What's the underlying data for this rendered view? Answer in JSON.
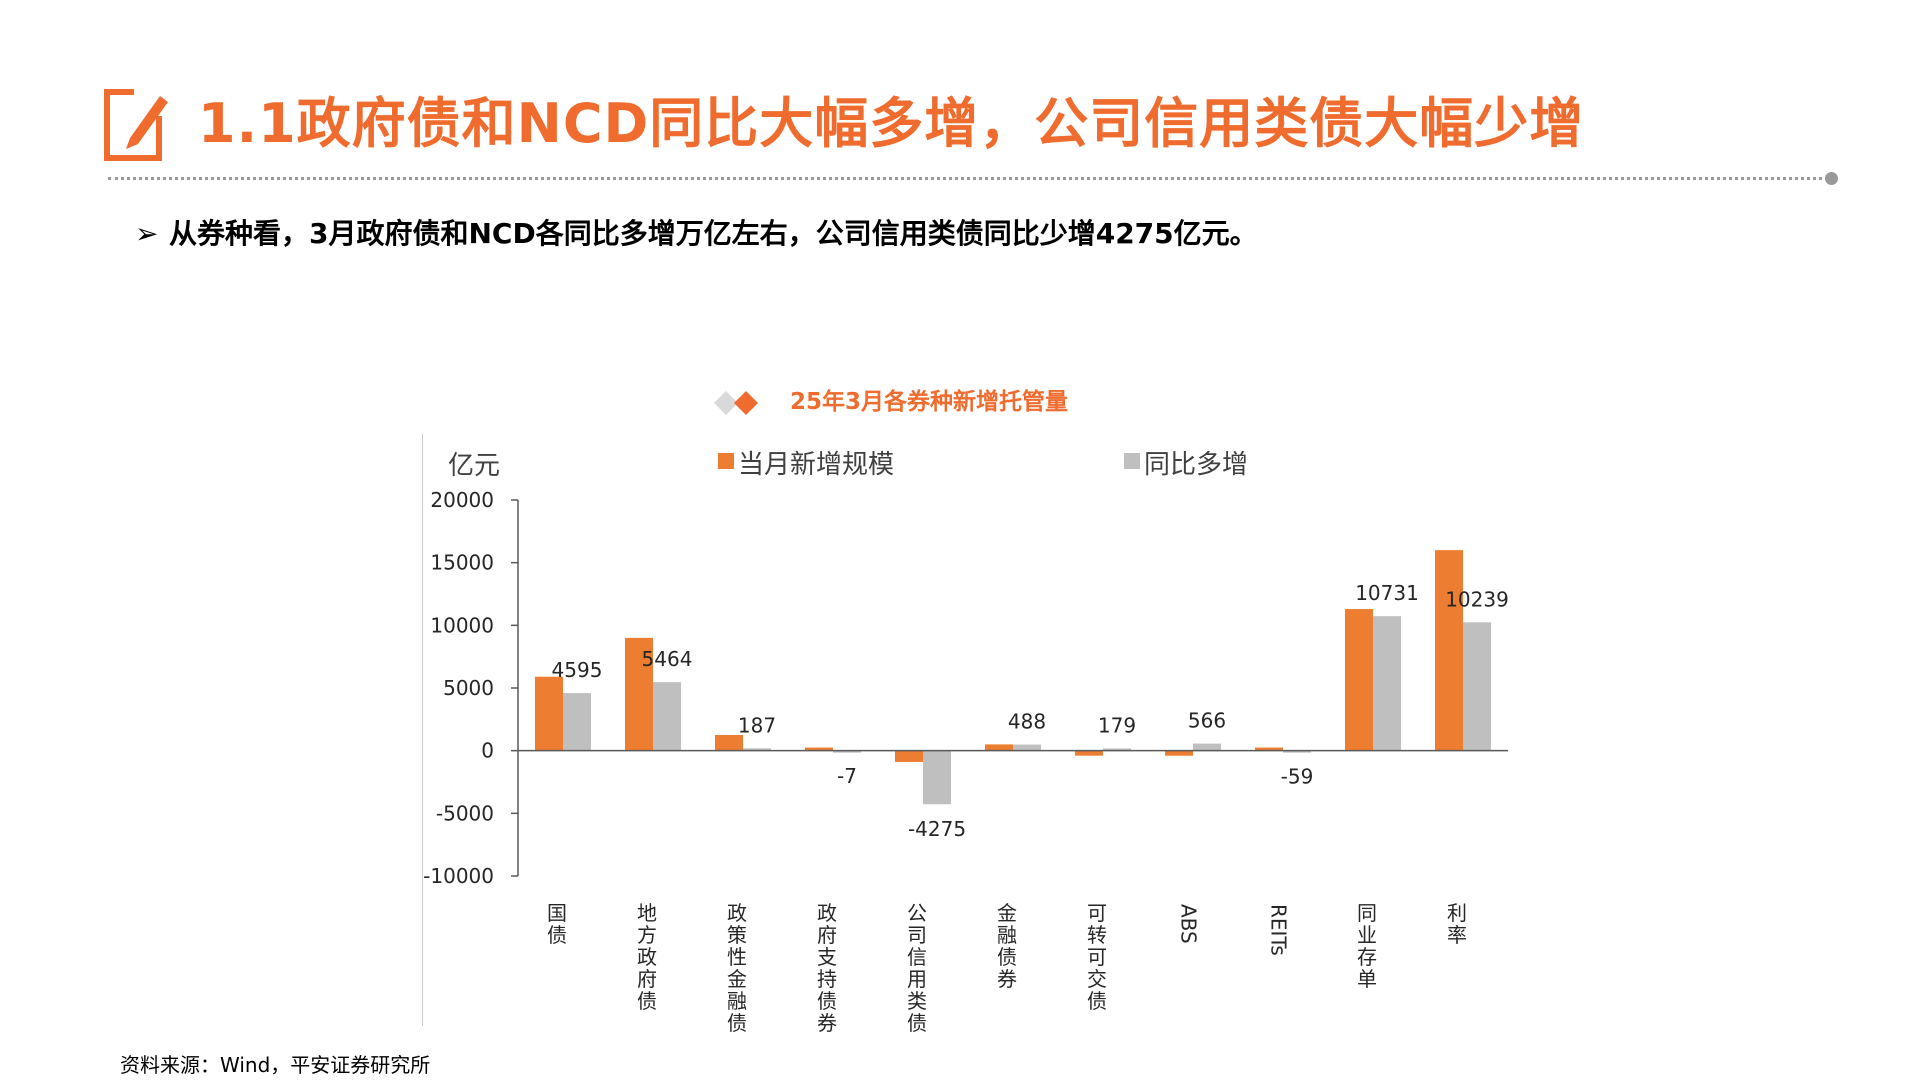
{
  "page_title": "1.1政府债和NCD同比大幅多增，公司信用类债大幅少增",
  "bullet": {
    "marker": "➢",
    "text": "从券种看，3月政府债和NCD各同比多增万亿左右，公司信用类债同比少增4275亿元。"
  },
  "colors": {
    "accent": "#ef6c2e",
    "series_current": "#ed7d31",
    "series_yoy": "#bfbfbf",
    "divider": "#9a9a9a"
  },
  "icons": {
    "title": "edit-pencil-icon",
    "chart_head": "diamond-pair-icon"
  },
  "chart_data": {
    "type": "bar",
    "title": "25年3月各券种新增托管量",
    "ylabel": "亿元",
    "ylim": [
      -10000,
      20000
    ],
    "yticks": [
      -10000,
      -5000,
      0,
      5000,
      10000,
      15000,
      20000
    ],
    "legend": "top",
    "grid": false,
    "categories": [
      "国债",
      "地方政府债",
      "政策性金融债",
      "政府支持债券",
      "公司信用类债",
      "金融债券",
      "可转可交债",
      "ABS",
      "REITs",
      "同业存单",
      "利率"
    ],
    "series": [
      {
        "name": "当月新增规模",
        "values": [
          5900,
          9000,
          1250,
          250,
          -900,
          500,
          -400,
          -400,
          250,
          11300,
          16000
        ]
      },
      {
        "name": "同比多增",
        "values": [
          4595,
          5464,
          187,
          -7,
          -4275,
          488,
          179,
          566,
          -59,
          10731,
          10239
        ]
      }
    ],
    "data_labels": [
      "4595",
      "5464",
      "187",
      "-7",
      "-4275",
      "488",
      "179",
      "566",
      "-59",
      "10731",
      "10239"
    ]
  },
  "source": "资料来源：Wind，平安证券研究所"
}
